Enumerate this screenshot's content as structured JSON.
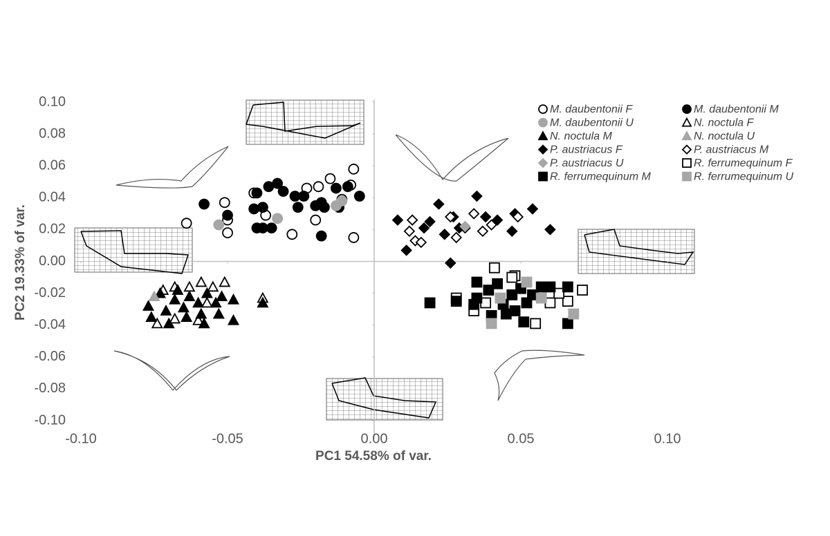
{
  "chart_data": {
    "type": "scatter",
    "xlabel": "PC1  54.58% of var.",
    "ylabel": "PC2 19.33% of var.",
    "xlim": [
      -0.1,
      0.1
    ],
    "ylim": [
      -0.1,
      0.1
    ],
    "xticks": [
      {
        "value": -0.1,
        "label": "-0.10"
      },
      -0.05,
      {
        "value": 0,
        "label": "0.00"
      },
      0.05,
      {
        "value": 0.1,
        "label": "0.10"
      }
    ],
    "yticks": [
      {
        "value": -0.1,
        "label": "-0.10"
      },
      -0.08,
      -0.06,
      -0.04,
      -0.02,
      {
        "value": 0,
        "label": "0.00"
      },
      0.02,
      0.04,
      0.06,
      0.08,
      {
        "value": 0.1,
        "label": "0.10"
      }
    ],
    "series": [
      {
        "name": "M. daubentonii F",
        "color": "#000000",
        "marker": "circle",
        "filled": false,
        "x": [
          -0.064,
          -0.051,
          -0.05,
          -0.05,
          -0.041,
          -0.037,
          -0.028,
          -0.023,
          -0.019,
          -0.015,
          -0.007,
          -0.008,
          -0.007,
          -0.02,
          -0.011
        ],
        "y": [
          0.024,
          0.037,
          0.026,
          0.018,
          0.043,
          0.029,
          0.017,
          0.046,
          0.047,
          0.052,
          0.058,
          0.048,
          0.015,
          0.026,
          0.039
        ]
      },
      {
        "name": "M. daubentonii M",
        "color": "#000000",
        "marker": "circle",
        "filled": true,
        "x": [
          -0.058,
          -0.05,
          -0.04,
          -0.036,
          -0.033,
          -0.041,
          -0.038,
          -0.038,
          -0.04,
          -0.035,
          -0.027,
          -0.024,
          -0.02,
          -0.018,
          -0.017,
          -0.013,
          -0.009,
          -0.012,
          -0.005,
          -0.018,
          -0.026,
          -0.031
        ],
        "y": [
          0.036,
          0.029,
          0.043,
          0.047,
          0.049,
          0.033,
          0.034,
          0.021,
          0.021,
          0.021,
          0.041,
          0.041,
          0.035,
          0.037,
          0.034,
          0.046,
          0.047,
          0.034,
          0.041,
          0.016,
          0.034,
          0.044
        ]
      },
      {
        "name": "M. daubentonii U",
        "color": "#a6a6a6",
        "marker": "circle",
        "filled": true,
        "x": [
          -0.053,
          -0.033,
          -0.013,
          -0.011
        ],
        "y": [
          0.023,
          0.027,
          0.035,
          0.038
        ]
      },
      {
        "name": "N. noctula F",
        "color": "#000000",
        "marker": "triangle",
        "filled": false,
        "x": [
          -0.072,
          -0.068,
          -0.074,
          -0.063,
          -0.059,
          -0.055,
          -0.051,
          -0.038,
          -0.068,
          -0.06,
          -0.057
        ],
        "y": [
          -0.018,
          -0.016,
          -0.039,
          -0.016,
          -0.013,
          -0.016,
          -0.013,
          -0.023,
          -0.036,
          -0.037,
          -0.026
        ]
      },
      {
        "name": "N. noctula M",
        "color": "#000000",
        "marker": "triangle",
        "filled": true,
        "x": [
          -0.077,
          -0.076,
          -0.073,
          -0.071,
          -0.068,
          -0.067,
          -0.065,
          -0.063,
          -0.06,
          -0.058,
          -0.057,
          -0.053,
          -0.052,
          -0.048,
          -0.048,
          -0.038,
          -0.07,
          -0.059,
          -0.054,
          -0.064
        ],
        "y": [
          -0.028,
          -0.035,
          -0.02,
          -0.031,
          -0.024,
          -0.018,
          -0.029,
          -0.022,
          -0.026,
          -0.039,
          -0.02,
          -0.033,
          -0.022,
          -0.037,
          -0.024,
          -0.026,
          -0.039,
          -0.033,
          -0.026,
          -0.035
        ]
      },
      {
        "name": "N. noctula U",
        "color": "#a6a6a6",
        "marker": "triangle",
        "filled": true,
        "x": [
          -0.075
        ],
        "y": [
          -0.022
        ]
      },
      {
        "name": "P. austriacus F",
        "color": "#000000",
        "marker": "diamond",
        "filled": true,
        "x": [
          0.008,
          0.011,
          0.019,
          0.022,
          0.027,
          0.035,
          0.038,
          0.047,
          0.048,
          0.054,
          0.06,
          0.026,
          0.017,
          0.029,
          0.024,
          0.042
        ],
        "y": [
          0.026,
          0.007,
          0.025,
          0.036,
          0.028,
          0.041,
          0.028,
          0.019,
          0.03,
          0.033,
          0.02,
          -0.001,
          0.021,
          0.021,
          0.017,
          0.026
        ]
      },
      {
        "name": "P. austriacus M",
        "color": "#000000",
        "marker": "diamond",
        "filled": false,
        "x": [
          0.012,
          0.014,
          0.016,
          0.026,
          0.031,
          0.034,
          0.037,
          0.04,
          0.049,
          0.013,
          0.028
        ],
        "y": [
          0.019,
          0.013,
          0.012,
          0.028,
          0.021,
          0.03,
          0.019,
          0.023,
          0.028,
          0.026,
          0.015
        ]
      },
      {
        "name": "P. austriacus U",
        "color": "#a6a6a6",
        "marker": "diamond",
        "filled": true,
        "x": [
          0.031
        ],
        "y": [
          0.022
        ]
      },
      {
        "name": "R. ferrumequinum F",
        "color": "#000000",
        "marker": "square",
        "filled": false,
        "x": [
          0.028,
          0.034,
          0.041,
          0.048,
          0.055,
          0.06,
          0.066,
          0.071,
          0.063,
          0.038,
          0.047
        ],
        "y": [
          -0.023,
          -0.031,
          -0.004,
          -0.009,
          -0.039,
          -0.026,
          -0.025,
          -0.018,
          -0.02,
          -0.026,
          -0.01
        ]
      },
      {
        "name": "R. ferrumequinum M",
        "color": "#000000",
        "marker": "square",
        "filled": true,
        "x": [
          0.019,
          0.028,
          0.035,
          0.035,
          0.034,
          0.04,
          0.042,
          0.044,
          0.047,
          0.05,
          0.051,
          0.052,
          0.054,
          0.057,
          0.06,
          0.066,
          0.066,
          0.048,
          0.039,
          0.045
        ],
        "y": [
          -0.026,
          -0.025,
          -0.013,
          -0.023,
          -0.027,
          -0.034,
          -0.014,
          -0.027,
          -0.021,
          -0.017,
          -0.038,
          -0.026,
          -0.021,
          -0.016,
          -0.016,
          -0.016,
          -0.039,
          -0.031,
          -0.018,
          -0.033
        ]
      },
      {
        "name": "R. ferrumequinum U",
        "color": "#a6a6a6",
        "marker": "square",
        "filled": true,
        "x": [
          0.04,
          0.043,
          0.052,
          0.057,
          0.068
        ],
        "y": [
          -0.039,
          -0.023,
          -0.013,
          -0.023,
          -0.033
        ]
      }
    ]
  }
}
